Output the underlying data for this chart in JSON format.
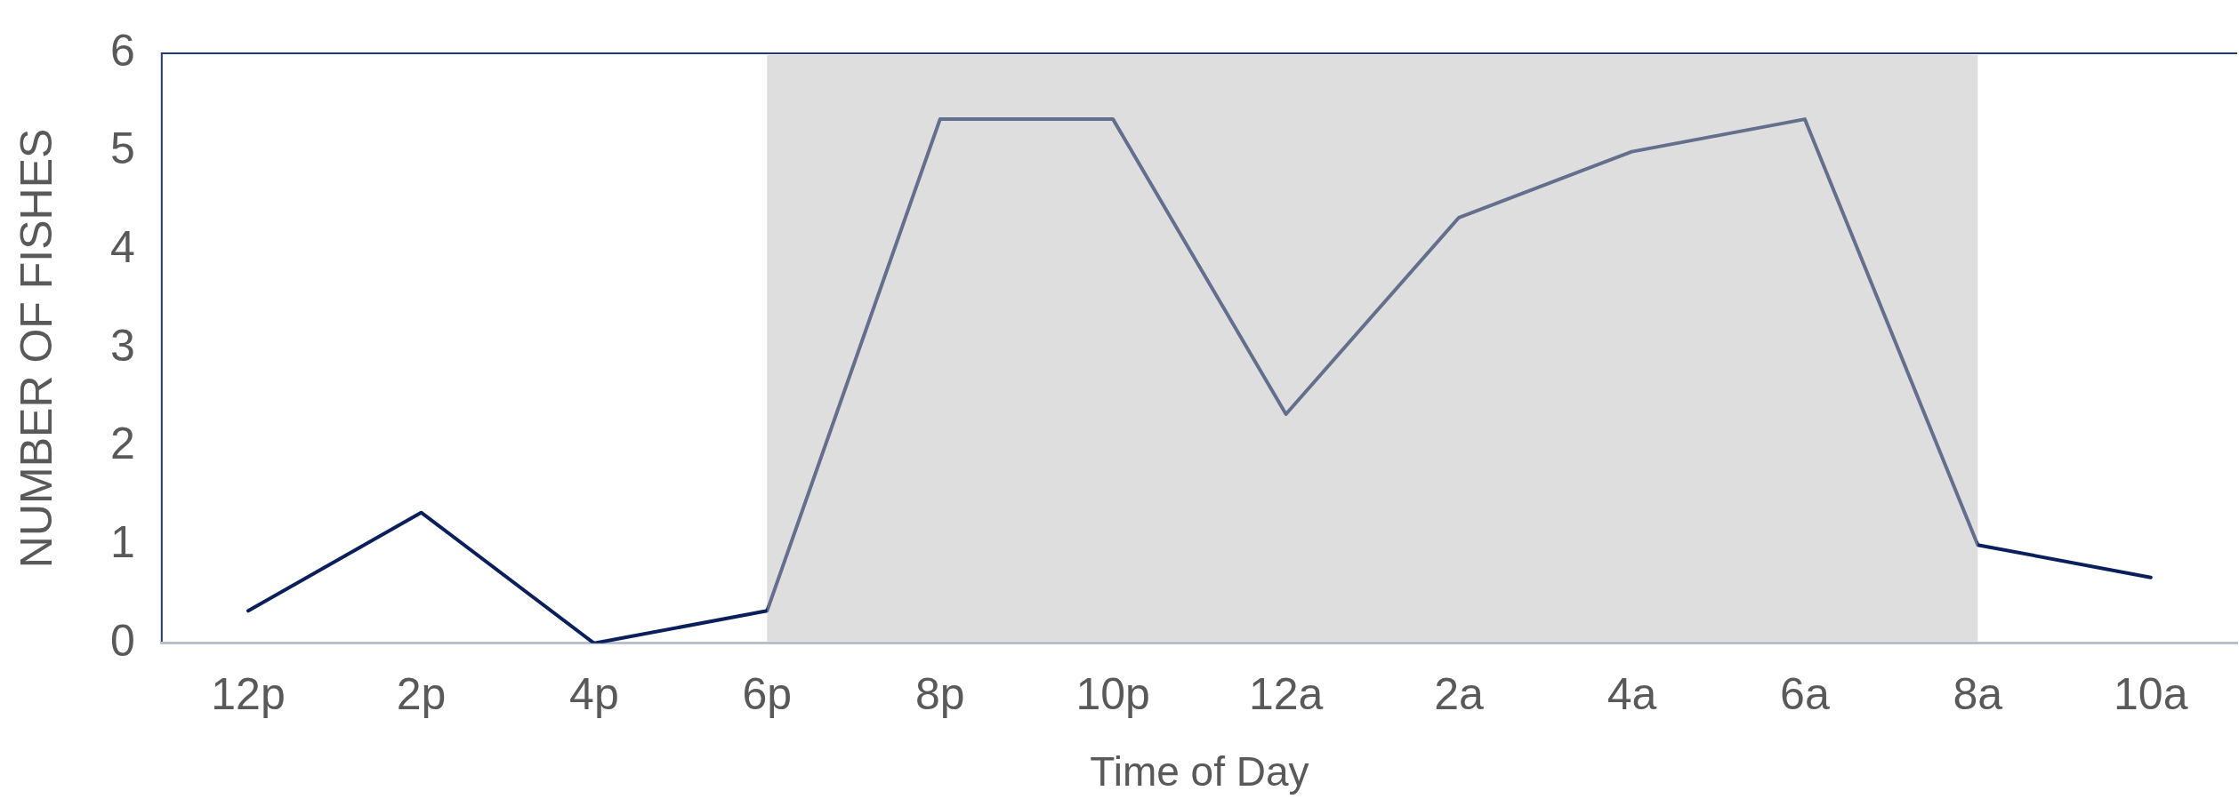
{
  "chart_data": {
    "type": "line",
    "xlabel": "Time of Day",
    "ylabel": "NUMBER OF FISHES",
    "categories": [
      "12p",
      "2p",
      "4p",
      "6p",
      "8p",
      "10p",
      "12a",
      "2a",
      "4a",
      "6a",
      "8a",
      "10a"
    ],
    "series": [
      {
        "color": "#0a1f5c",
        "values": [
          0.33,
          1.33,
          0,
          0.33,
          5.33,
          5.33,
          2.33,
          4.33,
          5,
          5.33,
          1,
          0.67
        ]
      }
    ],
    "ylim": [
      0,
      6
    ],
    "yticks": [
      0,
      1,
      2,
      3,
      4,
      5,
      6
    ],
    "grid": false,
    "legend": false,
    "marker": "none",
    "line_style": "solid",
    "bands": [
      {
        "axis": "x",
        "from": "6p",
        "to": "8a",
        "color": "#bdbdbd"
      }
    ]
  }
}
